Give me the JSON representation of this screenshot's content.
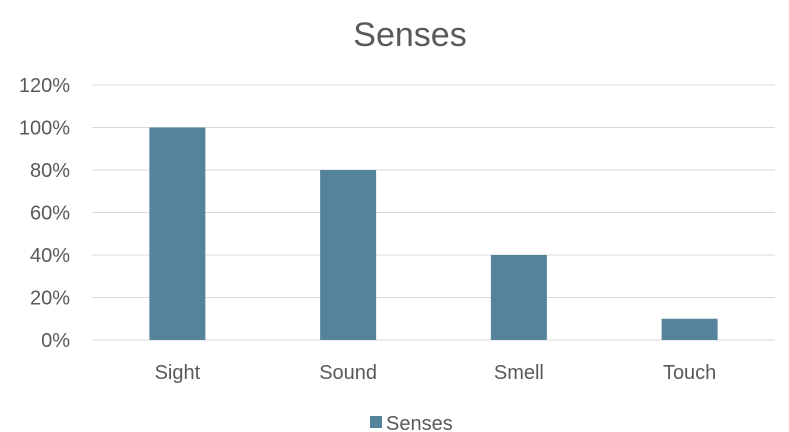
{
  "chart_data": {
    "type": "bar",
    "title": "Senses",
    "categories": [
      "Sight",
      "Sound",
      "Smell",
      "Touch"
    ],
    "series": [
      {
        "name": "Senses",
        "values": [
          100,
          80,
          40,
          10
        ],
        "color": "#54839B"
      }
    ],
    "y_ticks": [
      "0%",
      "20%",
      "40%",
      "60%",
      "80%",
      "100%",
      "120%"
    ],
    "ylim": [
      0,
      120
    ],
    "y_unit": "%",
    "grid": true,
    "gridline_color": "#D9D9D9",
    "legend": {
      "position": "bottom",
      "entries": [
        "Senses"
      ]
    }
  }
}
